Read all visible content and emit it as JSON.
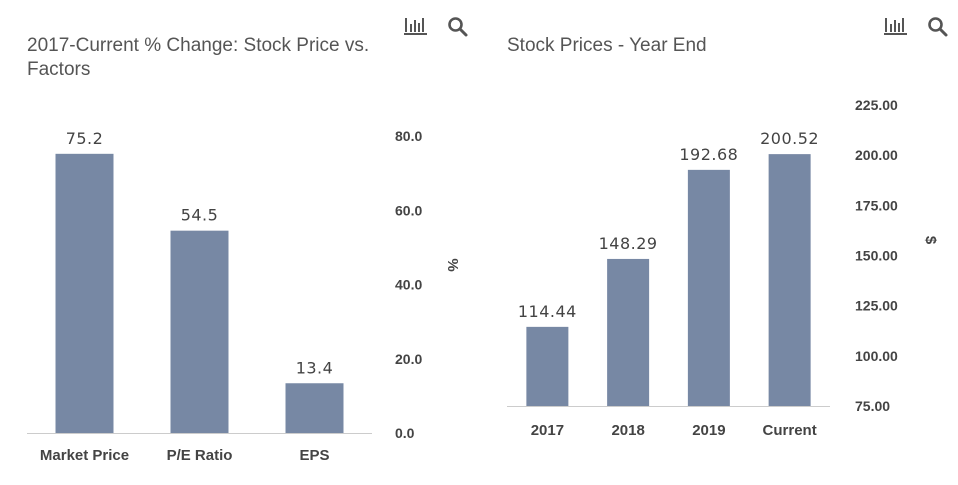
{
  "colors": {
    "bar": "#7788a4",
    "axis": "#cccccc",
    "title": "#555555",
    "label": "#444444",
    "icon": "#555555"
  },
  "icons": [
    "bar-chart-icon",
    "search-icon"
  ],
  "chart_data": [
    {
      "id": "left",
      "type": "bar",
      "title_lines": [
        "2017-Current % Change: Stock Price vs.",
        "Factors"
      ],
      "categories": [
        "Market Price",
        "P/E Ratio",
        "EPS"
      ],
      "values": [
        75.2,
        54.5,
        13.4
      ],
      "data_labels": [
        "75.2",
        "54.5",
        "13.4"
      ],
      "ylabel": "%",
      "ylim": [
        0,
        80
      ],
      "yticks": [
        0,
        20,
        40,
        60,
        80
      ],
      "ytick_labels": [
        "0.0",
        "20.0",
        "40.0",
        "60.0",
        "80.0"
      ],
      "grid": false,
      "axis_side": "right"
    },
    {
      "id": "right",
      "type": "bar",
      "title_lines": [
        "Stock Prices - Year End"
      ],
      "categories": [
        "2017",
        "2018",
        "2019",
        "Current"
      ],
      "values": [
        114.44,
        148.29,
        192.68,
        200.52
      ],
      "data_labels": [
        "114.44",
        "148.29",
        "192.68",
        "200.52"
      ],
      "ylabel": "$",
      "ylim": [
        75,
        225
      ],
      "yticks": [
        75,
        100,
        125,
        150,
        175,
        200,
        225
      ],
      "ytick_labels": [
        "75.00",
        "100.00",
        "125.00",
        "150.00",
        "175.00",
        "200.00",
        "225.00"
      ],
      "grid": false,
      "axis_side": "right"
    }
  ]
}
